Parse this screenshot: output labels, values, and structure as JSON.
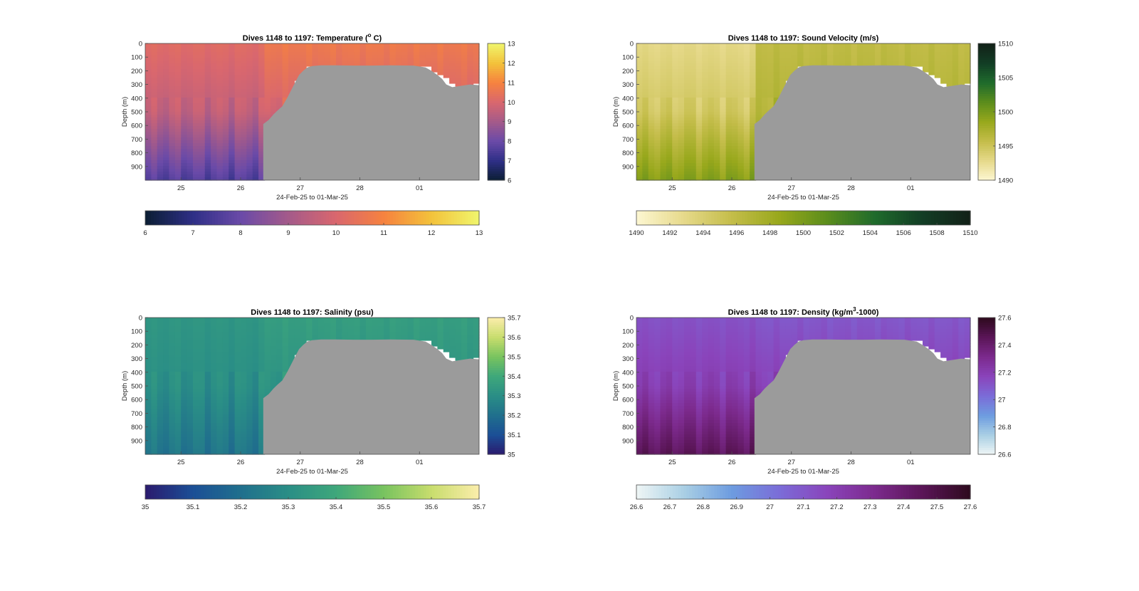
{
  "chart_data": [
    {
      "type": "heatmap",
      "title": "Dives 1148 to 1197: Temperature (",
      "title_sup": "o",
      "title_tail": " C)",
      "xlabel": "24-Feb-25 to 01-Mar-25",
      "ylabel": "Depth (m)",
      "x_ticks": [
        "25",
        "26",
        "27",
        "28",
        "01"
      ],
      "y_ticks": [
        "0",
        "100",
        "200",
        "300",
        "400",
        "500",
        "600",
        "700",
        "800",
        "900"
      ],
      "ylim": [
        0,
        1000
      ],
      "xlim_days": [
        24.4,
        30.0
      ],
      "colorbar_ticks": [
        "6",
        "7",
        "8",
        "9",
        "10",
        "11",
        "12",
        "13"
      ],
      "colormap": [
        "#0b1e33",
        "#2e2f86",
        "#6a4aa8",
        "#a45a8a",
        "#d9676e",
        "#f6823f",
        "#f3c23b",
        "#f0f56c"
      ],
      "clim": [
        6,
        13
      ],
      "values": {
        "surface": 10.2,
        "deep": 7.6,
        "right_surface": 10.7
      },
      "mask_color": "#9b9b9b"
    },
    {
      "type": "heatmap",
      "title": "Dives 1148 to 1197: Sound Velocity (m/s)",
      "title_sup": "",
      "title_tail": "",
      "xlabel": "24-Feb-25 to 01-Mar-25",
      "ylabel": "Depth (m)",
      "x_ticks": [
        "25",
        "26",
        "27",
        "28",
        "01"
      ],
      "y_ticks": [
        "0",
        "100",
        "200",
        "300",
        "400",
        "500",
        "600",
        "700",
        "800",
        "900"
      ],
      "ylim": [
        0,
        1000
      ],
      "xlim_days": [
        24.4,
        30.0
      ],
      "colorbar_ticks": [
        "1510",
        "1505",
        "1500",
        "1495",
        "1490"
      ],
      "horizontal_colorbar_ticks": [
        "1490",
        "1492",
        "1494",
        "1496",
        "1498",
        "1500",
        "1502",
        "1504",
        "1506",
        "1508",
        "1510"
      ],
      "colormap": [
        "#fdf7d2",
        "#e6d98a",
        "#c4bd4a",
        "#98a81c",
        "#5b8d1c",
        "#1f6b2c",
        "#123d25",
        "#122118"
      ],
      "clim": [
        1490,
        1510
      ],
      "values": {
        "surface": 1493.0,
        "deep": 1499.5,
        "right_surface": 1496.0
      },
      "mask_color": "#9b9b9b"
    },
    {
      "type": "heatmap",
      "title": "Dives 1148 to 1197: Salinity (psu)",
      "title_sup": "",
      "title_tail": "",
      "xlabel": "24-Feb-25 to 01-Mar-25",
      "ylabel": "Depth (m)",
      "x_ticks": [
        "25",
        "26",
        "27",
        "28",
        "01"
      ],
      "y_ticks": [
        "0",
        "100",
        "200",
        "300",
        "400",
        "500",
        "600",
        "700",
        "800",
        "900"
      ],
      "ylim": [
        0,
        1000
      ],
      "xlim_days": [
        24.4,
        30.0
      ],
      "colorbar_ticks": [
        "35.7",
        "35.6",
        "35.5",
        "35.4",
        "35.3",
        "35.2",
        "35.1",
        "35"
      ],
      "colormap": [
        "#2b1a6e",
        "#1b4f96",
        "#206f8d",
        "#2a8e86",
        "#3ea77b",
        "#78c35f",
        "#c8dd6d",
        "#fbedab"
      ],
      "clim": [
        35.0,
        35.7
      ],
      "values": {
        "surface": 35.33,
        "deep": 35.22,
        "right_surface": 35.36
      },
      "mask_color": "#9b9b9b"
    },
    {
      "type": "heatmap",
      "title": "Dives 1148 to 1197: Density (kg/m",
      "title_sup": "3",
      "title_tail": "-1000)",
      "xlabel": "24-Feb-25 to 01-Mar-25",
      "ylabel": "Depth (m)",
      "x_ticks": [
        "25",
        "26",
        "27",
        "28",
        "01"
      ],
      "y_ticks": [
        "0",
        "100",
        "200",
        "300",
        "400",
        "500",
        "600",
        "700",
        "800",
        "900"
      ],
      "ylim": [
        0,
        1000
      ],
      "xlim_days": [
        24.4,
        30.0
      ],
      "colorbar_ticks": [
        "27.6",
        "27.4",
        "27.2",
        "27",
        "26.8",
        "26.6"
      ],
      "horizontal_colorbar_ticks": [
        "26.6",
        "26.7",
        "26.8",
        "26.9",
        "27",
        "27.1",
        "27.2",
        "27.3",
        "27.4",
        "27.5",
        "27.6"
      ],
      "colormap": [
        "#eff6f6",
        "#a9cfe4",
        "#6d9ce0",
        "#7b6cd8",
        "#8a44bb",
        "#7c2a8d",
        "#5a1557",
        "#2e0a1e"
      ],
      "clim": [
        26.6,
        27.6
      ],
      "values": {
        "surface": 27.12,
        "deep": 27.45,
        "right_surface": 27.1
      },
      "mask_color": "#9b9b9b"
    }
  ]
}
